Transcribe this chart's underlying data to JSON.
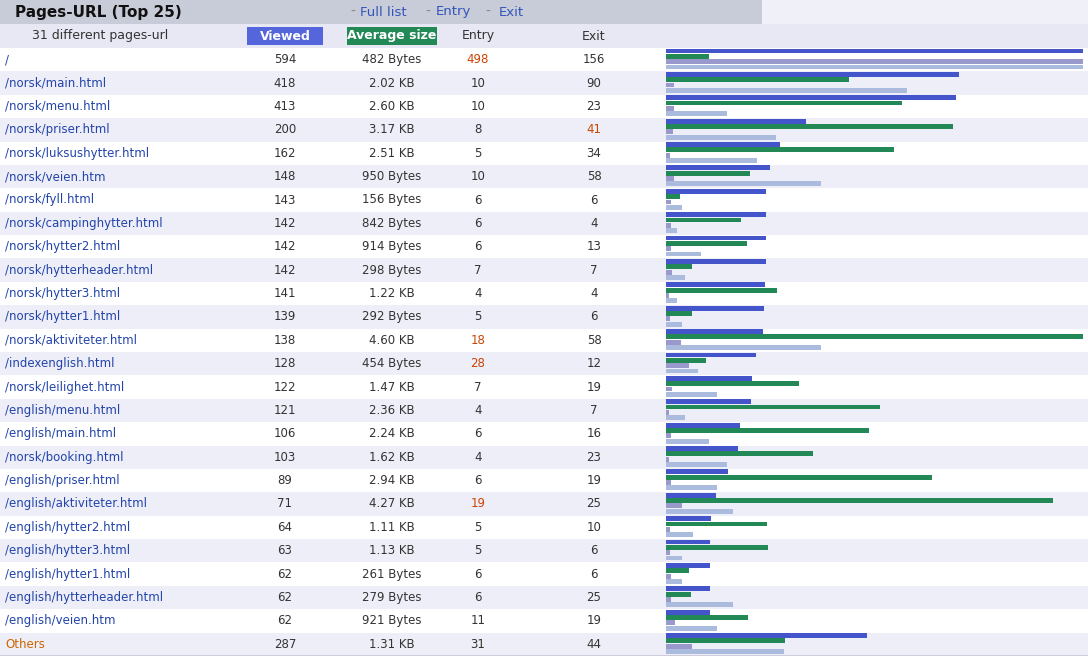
{
  "title": "Pages-URL (Top 25)",
  "rows": [
    {
      "page": "/",
      "viewed": 594,
      "avg_size": "482 Bytes",
      "avg_size_bytes": 482,
      "entry": 498,
      "exit": 156,
      "entry_hi": true,
      "exit_hi": false
    },
    {
      "page": "/norsk/main.html",
      "viewed": 418,
      "avg_size": "2.02 KB",
      "avg_size_bytes": 2068,
      "entry": 10,
      "exit": 90,
      "entry_hi": false,
      "exit_hi": false
    },
    {
      "page": "/norsk/menu.html",
      "viewed": 413,
      "avg_size": "2.60 KB",
      "avg_size_bytes": 2662,
      "entry": 10,
      "exit": 23,
      "entry_hi": false,
      "exit_hi": false
    },
    {
      "page": "/norsk/priser.html",
      "viewed": 200,
      "avg_size": "3.17 KB",
      "avg_size_bytes": 3246,
      "entry": 8,
      "exit": 41,
      "entry_hi": false,
      "exit_hi": true
    },
    {
      "page": "/norsk/luksushytter.html",
      "viewed": 162,
      "avg_size": "2.51 KB",
      "avg_size_bytes": 2570,
      "entry": 5,
      "exit": 34,
      "entry_hi": false,
      "exit_hi": false
    },
    {
      "page": "/norsk/veien.htm",
      "viewed": 148,
      "avg_size": "950 Bytes",
      "avg_size_bytes": 950,
      "entry": 10,
      "exit": 58,
      "entry_hi": false,
      "exit_hi": false
    },
    {
      "page": "/norsk/fyll.html",
      "viewed": 143,
      "avg_size": "156 Bytes",
      "avg_size_bytes": 156,
      "entry": 6,
      "exit": 6,
      "entry_hi": false,
      "exit_hi": false
    },
    {
      "page": "/norsk/campinghytter.html",
      "viewed": 142,
      "avg_size": "842 Bytes",
      "avg_size_bytes": 842,
      "entry": 6,
      "exit": 4,
      "entry_hi": false,
      "exit_hi": false
    },
    {
      "page": "/norsk/hytter2.html",
      "viewed": 142,
      "avg_size": "914 Bytes",
      "avg_size_bytes": 914,
      "entry": 6,
      "exit": 13,
      "entry_hi": false,
      "exit_hi": false
    },
    {
      "page": "/norsk/hytterheader.html",
      "viewed": 142,
      "avg_size": "298 Bytes",
      "avg_size_bytes": 298,
      "entry": 7,
      "exit": 7,
      "entry_hi": false,
      "exit_hi": false
    },
    {
      "page": "/norsk/hytter3.html",
      "viewed": 141,
      "avg_size": "1.22 KB",
      "avg_size_bytes": 1249,
      "entry": 4,
      "exit": 4,
      "entry_hi": false,
      "exit_hi": false
    },
    {
      "page": "/norsk/hytter1.html",
      "viewed": 139,
      "avg_size": "292 Bytes",
      "avg_size_bytes": 292,
      "entry": 5,
      "exit": 6,
      "entry_hi": false,
      "exit_hi": false
    },
    {
      "page": "/norsk/aktiviteter.html",
      "viewed": 138,
      "avg_size": "4.60 KB",
      "avg_size_bytes": 4710,
      "entry": 18,
      "exit": 58,
      "entry_hi": true,
      "exit_hi": false
    },
    {
      "page": "/indexenglish.html",
      "viewed": 128,
      "avg_size": "454 Bytes",
      "avg_size_bytes": 454,
      "entry": 28,
      "exit": 12,
      "entry_hi": true,
      "exit_hi": false
    },
    {
      "page": "/norsk/leilighet.html",
      "viewed": 122,
      "avg_size": "1.47 KB",
      "avg_size_bytes": 1505,
      "entry": 7,
      "exit": 19,
      "entry_hi": false,
      "exit_hi": false
    },
    {
      "page": "/english/menu.html",
      "viewed": 121,
      "avg_size": "2.36 KB",
      "avg_size_bytes": 2417,
      "entry": 4,
      "exit": 7,
      "entry_hi": false,
      "exit_hi": false
    },
    {
      "page": "/english/main.html",
      "viewed": 106,
      "avg_size": "2.24 KB",
      "avg_size_bytes": 2294,
      "entry": 6,
      "exit": 16,
      "entry_hi": false,
      "exit_hi": false
    },
    {
      "page": "/norsk/booking.html",
      "viewed": 103,
      "avg_size": "1.62 KB",
      "avg_size_bytes": 1659,
      "entry": 4,
      "exit": 23,
      "entry_hi": false,
      "exit_hi": false
    },
    {
      "page": "/english/priser.html",
      "viewed": 89,
      "avg_size": "2.94 KB",
      "avg_size_bytes": 3010,
      "entry": 6,
      "exit": 19,
      "entry_hi": false,
      "exit_hi": false
    },
    {
      "page": "/english/aktiviteter.html",
      "viewed": 71,
      "avg_size": "4.27 KB",
      "avg_size_bytes": 4372,
      "entry": 19,
      "exit": 25,
      "entry_hi": true,
      "exit_hi": false
    },
    {
      "page": "/english/hytter2.html",
      "viewed": 64,
      "avg_size": "1.11 KB",
      "avg_size_bytes": 1137,
      "entry": 5,
      "exit": 10,
      "entry_hi": false,
      "exit_hi": false
    },
    {
      "page": "/english/hytter3.html",
      "viewed": 63,
      "avg_size": "1.13 KB",
      "avg_size_bytes": 1157,
      "entry": 5,
      "exit": 6,
      "entry_hi": false,
      "exit_hi": false
    },
    {
      "page": "/english/hytter1.html",
      "viewed": 62,
      "avg_size": "261 Bytes",
      "avg_size_bytes": 261,
      "entry": 6,
      "exit": 6,
      "entry_hi": false,
      "exit_hi": false
    },
    {
      "page": "/english/hytterheader.html",
      "viewed": 62,
      "avg_size": "279 Bytes",
      "avg_size_bytes": 279,
      "entry": 6,
      "exit": 25,
      "entry_hi": false,
      "exit_hi": false
    },
    {
      "page": "/english/veien.htm",
      "viewed": 62,
      "avg_size": "921 Bytes",
      "avg_size_bytes": 921,
      "entry": 11,
      "exit": 19,
      "entry_hi": false,
      "exit_hi": false
    },
    {
      "page": "Others",
      "viewed": 287,
      "avg_size": "1.31 KB",
      "avg_size_bytes": 1342,
      "entry": 31,
      "exit": 44,
      "entry_hi": false,
      "exit_hi": false
    }
  ],
  "colors": {
    "title_bg": "#c8ccd8",
    "row_bg_even": "#ffffff",
    "row_bg_odd": "#eeeef8",
    "link_blue": "#3355bb",
    "page_blue": "#2244aa",
    "others_orange": "#cc6600",
    "highlight_orange": "#cc4400",
    "viewed_bar": "#4455cc",
    "avg_bar": "#228855",
    "entry_bar": "#9999cc",
    "exit_bar": "#aabbdd",
    "col_viewed_bg": "#5566dd",
    "col_avg_bg": "#228855",
    "col_text_white": "#ffffff",
    "normal_text": "#333333",
    "dash_color": "#888888"
  },
  "bar_max_viewed": 594,
  "bar_max_avg": 4710,
  "bar_max_entry": 498,
  "bar_max_exit": 156,
  "figsize": [
    10.88,
    6.56
  ]
}
